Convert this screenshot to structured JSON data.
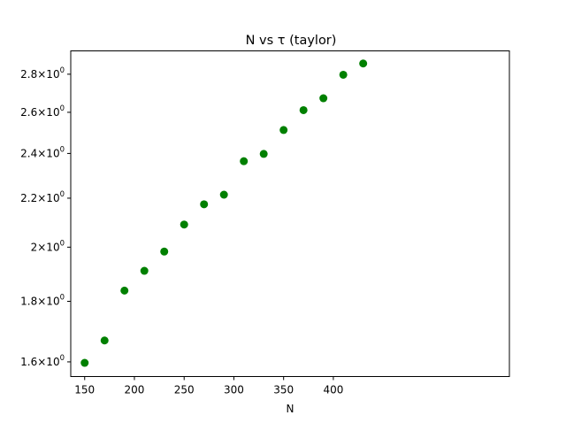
{
  "chart_data": {
    "type": "scatter",
    "title": "N vs τ (taylor)",
    "xlabel": "N",
    "ylabel": "",
    "xlim": [
      136,
      577
    ],
    "ylim": [
      1.555,
      2.93
    ],
    "y_scale": "log",
    "grid": false,
    "legend": "none",
    "marker_color": "#008000",
    "x_ticks": [
      150,
      200,
      250,
      300,
      350,
      400
    ],
    "y_ticks": [
      {
        "value": 1.6,
        "mantissa": "1.6",
        "exponent": "0"
      },
      {
        "value": 1.8,
        "mantissa": "1.8",
        "exponent": "0"
      },
      {
        "value": 2.0,
        "mantissa": "2",
        "exponent": "0"
      },
      {
        "value": 2.2,
        "mantissa": "2.2",
        "exponent": "0"
      },
      {
        "value": 2.4,
        "mantissa": "2.4",
        "exponent": "0"
      },
      {
        "value": 2.6,
        "mantissa": "2.6",
        "exponent": "0"
      },
      {
        "value": 2.8,
        "mantissa": "2.8",
        "exponent": "0"
      }
    ],
    "x": [
      150,
      170,
      190,
      210,
      230,
      250,
      270,
      290,
      310,
      330,
      350,
      370,
      390,
      410,
      430
    ],
    "y": [
      1.597,
      1.668,
      1.838,
      1.91,
      1.983,
      2.09,
      2.174,
      2.215,
      2.364,
      2.398,
      2.512,
      2.611,
      2.672,
      2.797,
      2.859
    ]
  }
}
